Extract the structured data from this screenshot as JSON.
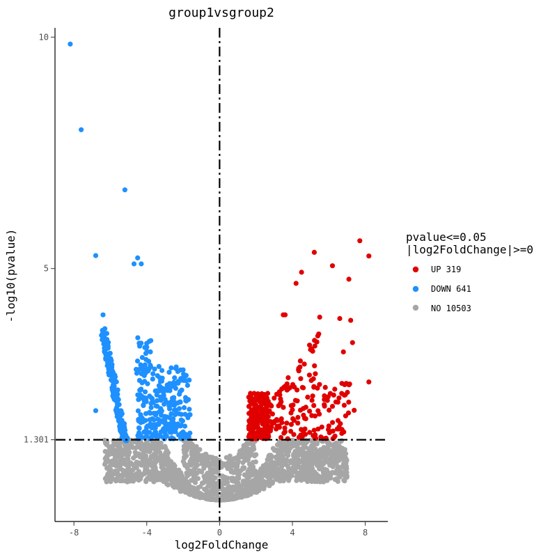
{
  "chart_data": {
    "type": "scatter",
    "title": "group1vsgroup2",
    "xlabel": "log2FoldChange",
    "ylabel": "-log10(pvalue)",
    "xlim": [
      -9,
      9.2
    ],
    "ylim": [
      -0.45,
      10.2
    ],
    "x_ticks": [
      -8,
      -4,
      0,
      4,
      8
    ],
    "x_tick_labels": [
      "-8",
      "-4",
      "0",
      "4",
      "8"
    ],
    "y_ticks": [
      1.301,
      5,
      10
    ],
    "y_tick_labels": [
      "1.301",
      "5",
      "10"
    ],
    "thresholds": {
      "pvalue_line_y": 1.301,
      "fold_change_line_x": 0
    },
    "legend": {
      "title_line1": "pvalue<=0.05",
      "title_line2": "|log2FoldChange|>=0",
      "placement": "right",
      "entries": [
        {
          "name": "UP",
          "count": "319",
          "label": "UP 319",
          "color": "#e00000"
        },
        {
          "name": "DOWN",
          "count": "641",
          "label": "DOWN 641",
          "color": "#1e90ff"
        },
        {
          "name": "NO",
          "count": "10503",
          "label": "NO 10503",
          "color": "#a6a6a6"
        }
      ]
    },
    "series": [
      {
        "name": "UP",
        "color": "#e00000",
        "count": 319,
        "notable_points": [
          [
            5.2,
            5.35
          ],
          [
            7.7,
            5.6
          ],
          [
            8.2,
            5.27
          ],
          [
            6.2,
            5.06
          ],
          [
            4.5,
            4.92
          ],
          [
            7.1,
            4.77
          ],
          [
            4.2,
            4.68
          ],
          [
            3.5,
            4.0
          ],
          [
            3.6,
            4.0
          ],
          [
            5.5,
            3.95
          ],
          [
            6.6,
            3.92
          ],
          [
            7.2,
            3.88
          ],
          [
            7.3,
            3.4
          ],
          [
            6.8,
            3.2
          ],
          [
            8.2,
            2.55
          ],
          [
            2.6,
            2.2
          ],
          [
            3.0,
            2.2
          ],
          [
            3.5,
            2.0
          ]
        ]
      },
      {
        "name": "DOWN",
        "color": "#1e90ff",
        "count": 641,
        "notable_points": [
          [
            -8.2,
            9.85
          ],
          [
            -7.6,
            8.0
          ],
          [
            -5.2,
            6.7
          ],
          [
            -6.8,
            5.28
          ],
          [
            -4.5,
            5.23
          ],
          [
            -4.3,
            5.1
          ],
          [
            -4.7,
            5.1
          ],
          [
            -6.4,
            4.0
          ],
          [
            -6.3,
            3.7
          ],
          [
            -6.8,
            1.93
          ],
          [
            -4.0,
            3.3
          ],
          [
            -3.8,
            3.2
          ]
        ]
      },
      {
        "name": "NO",
        "color": "#a6a6a6",
        "count": 10503,
        "min_y_near_zero": 0.0
      }
    ]
  }
}
